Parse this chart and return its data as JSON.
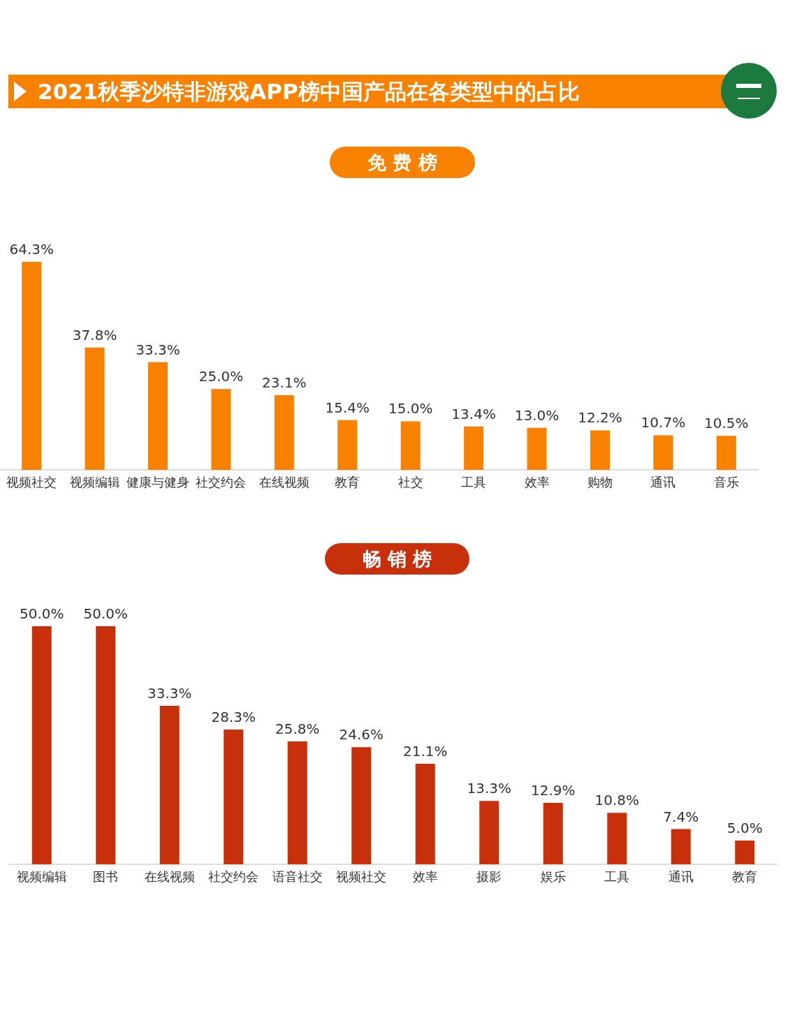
{
  "chart_data": [
    {
      "type": "bar",
      "title": "2021秋季沙特非游戏APP榜中国产品在各类型中的占比",
      "subtitle": "免 费 榜",
      "categories": [
        "视频社交",
        "视频编辑",
        "健康与健身",
        "社交约会",
        "在线视频",
        "教育",
        "社交",
        "工具",
        "效率",
        "购物",
        "通讯",
        "音乐"
      ],
      "values": [
        64.3,
        37.8,
        33.3,
        25.0,
        23.1,
        15.4,
        15.0,
        13.4,
        13.0,
        12.2,
        10.7,
        10.5
      ],
      "value_labels": [
        "64.3%",
        "37.8%",
        "33.3%",
        "25.0%",
        "23.1%",
        "15.4%",
        "15.0%",
        "13.4%",
        "13.0%",
        "12.2%",
        "10.7%",
        "10.5%"
      ],
      "color": "#f98100"
    },
    {
      "type": "bar",
      "title": "畅 销 榜",
      "categories": [
        "视频编辑",
        "图书",
        "在线视频",
        "社交约会",
        "语音社交",
        "视频社交",
        "效率",
        "摄影",
        "娱乐",
        "工具",
        "通讯",
        "教育"
      ],
      "values": [
        50.0,
        50.0,
        33.3,
        28.3,
        25.8,
        24.6,
        21.1,
        13.3,
        12.9,
        10.8,
        7.4,
        5.0
      ],
      "value_labels": [
        "50.0%",
        "50.0%",
        "33.3%",
        "28.3%",
        "25.8%",
        "24.6%",
        "21.1%",
        "13.3%",
        "12.9%",
        "10.8%",
        "7.4%",
        "5.0%"
      ],
      "color": "#c8300c"
    }
  ]
}
